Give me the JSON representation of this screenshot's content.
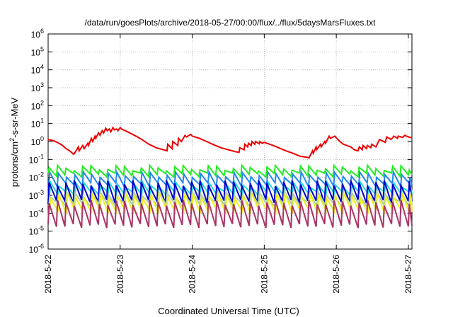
{
  "chart_data": {
    "type": "line",
    "title": "/data/run/goesPlots/archive/2018-05-27/00:00/flux/../flux/5daysMarsFluxes.txt",
    "xlabel": "Coordinated Universal Time (UTC)",
    "ylabel_main": "protons/cm",
    "ylabel_sup": "2",
    "ylabel_tail": "-s-sr-MeV",
    "xlim": [
      0,
      5.05
    ],
    "x_unit": "days since 2018-5-22 00:00",
    "x_ticks": [
      {
        "x": 0,
        "label": "2018-5-22"
      },
      {
        "x": 1,
        "label": "2018-5-23"
      },
      {
        "x": 2,
        "label": "2018-5-24"
      },
      {
        "x": 3,
        "label": "2018-5-25"
      },
      {
        "x": 4,
        "label": "2018-5-26"
      },
      {
        "x": 5,
        "label": "2018-5-27"
      }
    ],
    "y_scale": "log",
    "ylim": [
      1e-06,
      1000000.0
    ],
    "y_ticks": [
      {
        "exp": -6
      },
      {
        "exp": -5
      },
      {
        "exp": -4
      },
      {
        "exp": -3
      },
      {
        "exp": -2
      },
      {
        "exp": -1
      },
      {
        "exp": 0
      },
      {
        "exp": 1
      },
      {
        "exp": 2
      },
      {
        "exp": 3
      },
      {
        "exp": 4
      },
      {
        "exp": 5
      },
      {
        "exp": 6
      }
    ],
    "y_tick_base": "10",
    "grid": true,
    "series": [
      {
        "color": "#ee0000",
        "x": [
          0,
          0.08,
          0.15,
          0.2,
          0.25,
          0.3,
          0.35,
          0.36,
          0.42,
          0.43,
          0.48,
          0.5,
          0.55,
          0.56,
          0.6,
          0.62,
          0.65,
          0.66,
          0.7,
          0.72,
          0.75,
          0.77,
          0.8,
          0.82,
          0.85,
          0.87,
          0.9,
          0.92,
          0.95,
          0.97,
          1.0,
          1.02,
          1.1,
          1.2,
          1.3,
          1.4,
          1.5,
          1.6,
          1.65,
          1.66,
          1.72,
          1.73,
          1.8,
          1.81,
          1.85,
          1.9,
          1.92,
          1.98,
          2.0,
          2.1,
          2.2,
          2.3,
          2.4,
          2.5,
          2.6,
          2.65,
          2.66,
          2.72,
          2.73,
          2.77,
          2.78,
          2.82,
          2.83,
          2.87,
          2.88,
          2.93,
          2.94,
          2.97,
          3.0,
          3.1,
          3.2,
          3.3,
          3.4,
          3.5,
          3.6,
          3.62,
          3.67,
          3.68,
          3.72,
          3.73,
          3.78,
          3.79,
          3.84,
          3.85,
          3.9,
          3.92,
          3.98,
          4.0,
          4.05,
          4.1,
          4.2,
          4.25,
          4.3,
          4.32,
          4.36,
          4.37,
          4.42,
          4.43,
          4.48,
          4.49,
          4.55,
          4.6,
          4.68,
          4.7,
          4.76,
          4.8,
          4.85,
          4.86,
          4.92,
          4.95,
          5.0,
          5.05
        ],
        "y": [
          1.3,
          1.1,
          0.8,
          0.6,
          0.4,
          0.3,
          0.2,
          0.2,
          0.5,
          0.3,
          0.6,
          0.4,
          0.8,
          0.6,
          1.5,
          1.0,
          2.0,
          1.5,
          3.0,
          2.2,
          4.0,
          3.0,
          5.5,
          4.0,
          5.0,
          3.5,
          6.0,
          4.5,
          5.0,
          4.0,
          6.0,
          5.0,
          3.5,
          2.2,
          1.3,
          0.7,
          0.45,
          0.35,
          0.3,
          0.7,
          0.4,
          1.0,
          0.6,
          1.5,
          1.0,
          2.2,
          1.8,
          2.5,
          2.0,
          1.5,
          1.0,
          0.65,
          0.45,
          0.35,
          0.27,
          0.25,
          0.45,
          0.35,
          0.7,
          0.5,
          0.8,
          0.6,
          1.0,
          0.7,
          1.0,
          0.75,
          1.0,
          0.8,
          0.9,
          0.65,
          0.45,
          0.3,
          0.22,
          0.15,
          0.13,
          0.12,
          0.3,
          0.22,
          0.5,
          0.35,
          0.7,
          0.5,
          1.0,
          0.8,
          2.0,
          1.5,
          2.0,
          1.6,
          1.0,
          0.7,
          0.5,
          0.35,
          0.3,
          0.5,
          0.35,
          0.6,
          0.4,
          0.6,
          0.45,
          0.7,
          0.5,
          1.3,
          0.9,
          1.8,
          1.3,
          2.0,
          1.5,
          2.0,
          1.7,
          2.2,
          1.8,
          1.6
        ]
      }
    ],
    "sawtooth": {
      "note": "Periodic sawtooth series: periods_per_day cycles, each rising sharply to peak then decaying to trough.",
      "periods_per_day": 8.6,
      "series": [
        {
          "color": "#22ee22",
          "peak": 0.035,
          "trough": 0.014
        },
        {
          "color": "#2288ee",
          "peak": 0.015,
          "trough": 0.004
        },
        {
          "color": "#22dddd",
          "peak": 0.004,
          "trough": 0.0012
        },
        {
          "color": "#0000cc",
          "peak": 0.005,
          "trough": 0.00045
        },
        {
          "color": "#aaccaa",
          "peak": 0.0012,
          "trough": 0.0003
        },
        {
          "color": "#eeee22",
          "peak": 0.001,
          "trough": 0.00012
        },
        {
          "color": "#aa3366",
          "peak": 0.0004,
          "trough": 2e-05
        }
      ]
    }
  }
}
